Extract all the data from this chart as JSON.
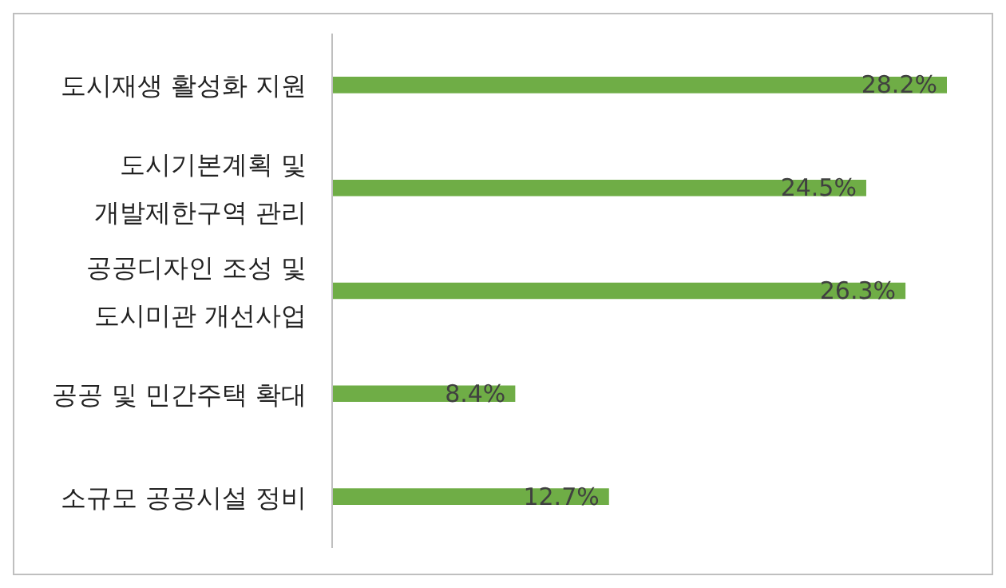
{
  "chart_data": {
    "type": "bar",
    "orientation": "horizontal",
    "categories": [
      "도시재생 활성화 지원",
      "도시기본계획 및\n개발제한구역 관리",
      "공공디자인 조성 및\n도시미관 개선사업",
      "공공 및 민간주택 확대",
      "소규모 공공시설 정비"
    ],
    "values": [
      28.2,
      24.5,
      26.3,
      8.4,
      12.7
    ],
    "value_labels": [
      "28.2%",
      "24.5%",
      "26.3%",
      "8.4%",
      "12.7%"
    ],
    "color": "#6fad46",
    "grid": false,
    "legend": false
  }
}
